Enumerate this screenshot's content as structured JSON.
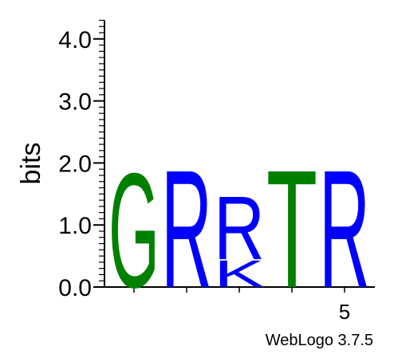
{
  "chart_data": {
    "type": "sequence-logo",
    "ylabel": "bits",
    "ylim": [
      0,
      4.3
    ],
    "yticks": [
      "0.0",
      "1.0",
      "2.0",
      "3.0",
      "4.0"
    ],
    "xtick_labels": [
      {
        "position": 5,
        "label": "5"
      }
    ],
    "positions": [
      {
        "index": 1,
        "stack": [
          {
            "letter": "G",
            "bits": 1.9
          }
        ]
      },
      {
        "index": 2,
        "stack": [
          {
            "letter": "R",
            "bits": 1.95
          }
        ]
      },
      {
        "index": 3,
        "stack": [
          {
            "letter": "K",
            "bits": 0.45
          },
          {
            "letter": "R",
            "bits": 1.05
          }
        ]
      },
      {
        "index": 4,
        "stack": [
          {
            "letter": "T",
            "bits": 1.95
          }
        ]
      },
      {
        "index": 5,
        "stack": [
          {
            "letter": "R",
            "bits": 1.95
          }
        ]
      }
    ],
    "colors": {
      "G": "#008000",
      "R": "#0000ff",
      "K": "#0000ff",
      "T": "#008000"
    }
  },
  "footer": {
    "credit": "WebLogo 3.7.5"
  }
}
